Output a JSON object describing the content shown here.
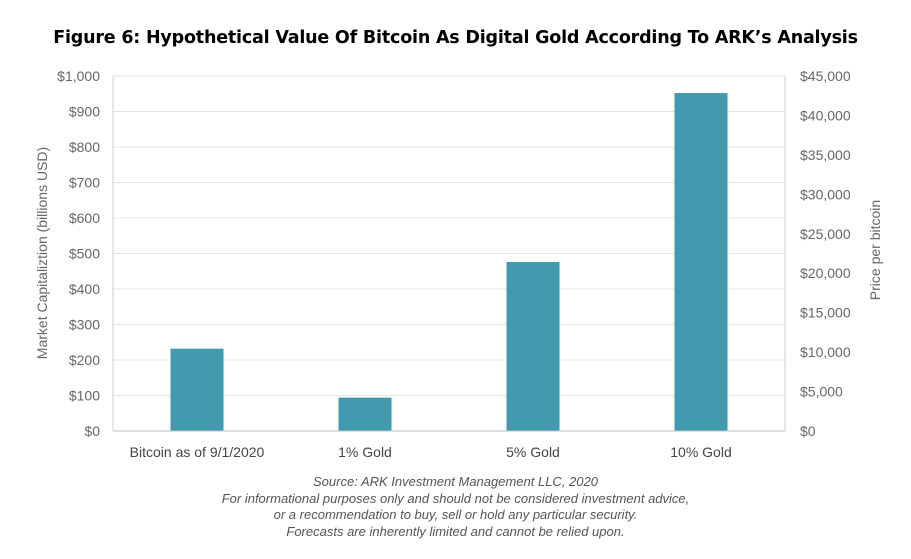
{
  "chart_data": {
    "type": "bar",
    "title": "Figure 6: Hypothetical Value Of Bitcoin As Digital Gold According To ARK’s Analysis",
    "categories": [
      "Bitcoin as of 9/1/2020",
      "1% Gold",
      "5% Gold",
      "10% Gold"
    ],
    "series": [
      {
        "name": "Market Capitaliztion (billions USD)",
        "values": [
          232,
          94,
          476,
          952
        ]
      }
    ],
    "ylabel": "Market Capitaliztion (billions USD)",
    "y2label": "Price per bitcoin",
    "ylim": [
      0,
      1000
    ],
    "y2lim": [
      0,
      45000
    ],
    "yticks": [
      "$0",
      "$100",
      "$200",
      "$300",
      "$400",
      "$500",
      "$600",
      "$700",
      "$800",
      "$900",
      "$1,000"
    ],
    "y2ticks": [
      "$0",
      "$5,000",
      "$10,000",
      "$15,000",
      "$20,000",
      "$25,000",
      "$30,000",
      "$35,000",
      "$40,000",
      "$45,000"
    ],
    "grid": true,
    "bar_color": "#439AAF",
    "grid_color": "#E3E3E3"
  },
  "footer": {
    "lines": [
      "Source: ARK Investment Management LLC, 2020",
      "For informational purposes only and should not be considered investment advice,",
      "or a recommendation to buy, sell or hold any particular security.",
      "Forecasts are inherently limited and cannot be relied upon."
    ]
  }
}
